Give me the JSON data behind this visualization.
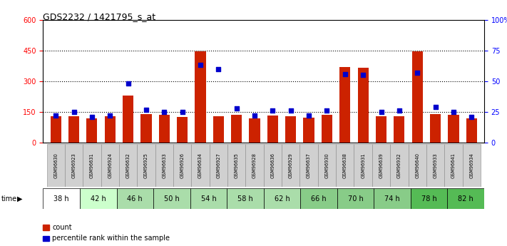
{
  "title": "GDS2232 / 1421795_s_at",
  "samples": [
    "GSM96630",
    "GSM96923",
    "GSM96631",
    "GSM96924",
    "GSM96632",
    "GSM96925",
    "GSM96633",
    "GSM96926",
    "GSM96634",
    "GSM96927",
    "GSM96635",
    "GSM96928",
    "GSM96636",
    "GSM96929",
    "GSM96637",
    "GSM96930",
    "GSM96638",
    "GSM96931",
    "GSM96639",
    "GSM96932",
    "GSM96640",
    "GSM96933",
    "GSM96641",
    "GSM96934"
  ],
  "counts": [
    130,
    128,
    120,
    128,
    230,
    140,
    135,
    125,
    445,
    130,
    135,
    120,
    132,
    128,
    122,
    135,
    370,
    365,
    130,
    130,
    445,
    138,
    135,
    118
  ],
  "percentiles": [
    22,
    25,
    21,
    22,
    48,
    27,
    25,
    25,
    63,
    60,
    28,
    22,
    26,
    26,
    22,
    26,
    56,
    55,
    25,
    26,
    57,
    29,
    25,
    21
  ],
  "time_labels": [
    "38 h",
    "42 h",
    "46 h",
    "50 h",
    "54 h",
    "58 h",
    "62 h",
    "66 h",
    "70 h",
    "74 h",
    "78 h",
    "82 h"
  ],
  "time_group_colors": [
    "#ffffff",
    "#ccffcc",
    "#aaddaa",
    "#aaddaa",
    "#aaddaa",
    "#aaddaa",
    "#aaddaa",
    "#88cc88",
    "#88cc88",
    "#88cc88",
    "#55bb55",
    "#55bb55"
  ],
  "bar_color": "#cc2200",
  "dot_color": "#0000cc",
  "ylim_left": [
    0,
    600
  ],
  "ylim_right": [
    0,
    100
  ],
  "yticks_left": [
    0,
    150,
    300,
    450,
    600
  ],
  "yticks_right": [
    0,
    25,
    50,
    75,
    100
  ],
  "grid_values": [
    150,
    300,
    450
  ],
  "sample_bg_color": "#d0d0d0",
  "plot_bg": "#ffffff"
}
